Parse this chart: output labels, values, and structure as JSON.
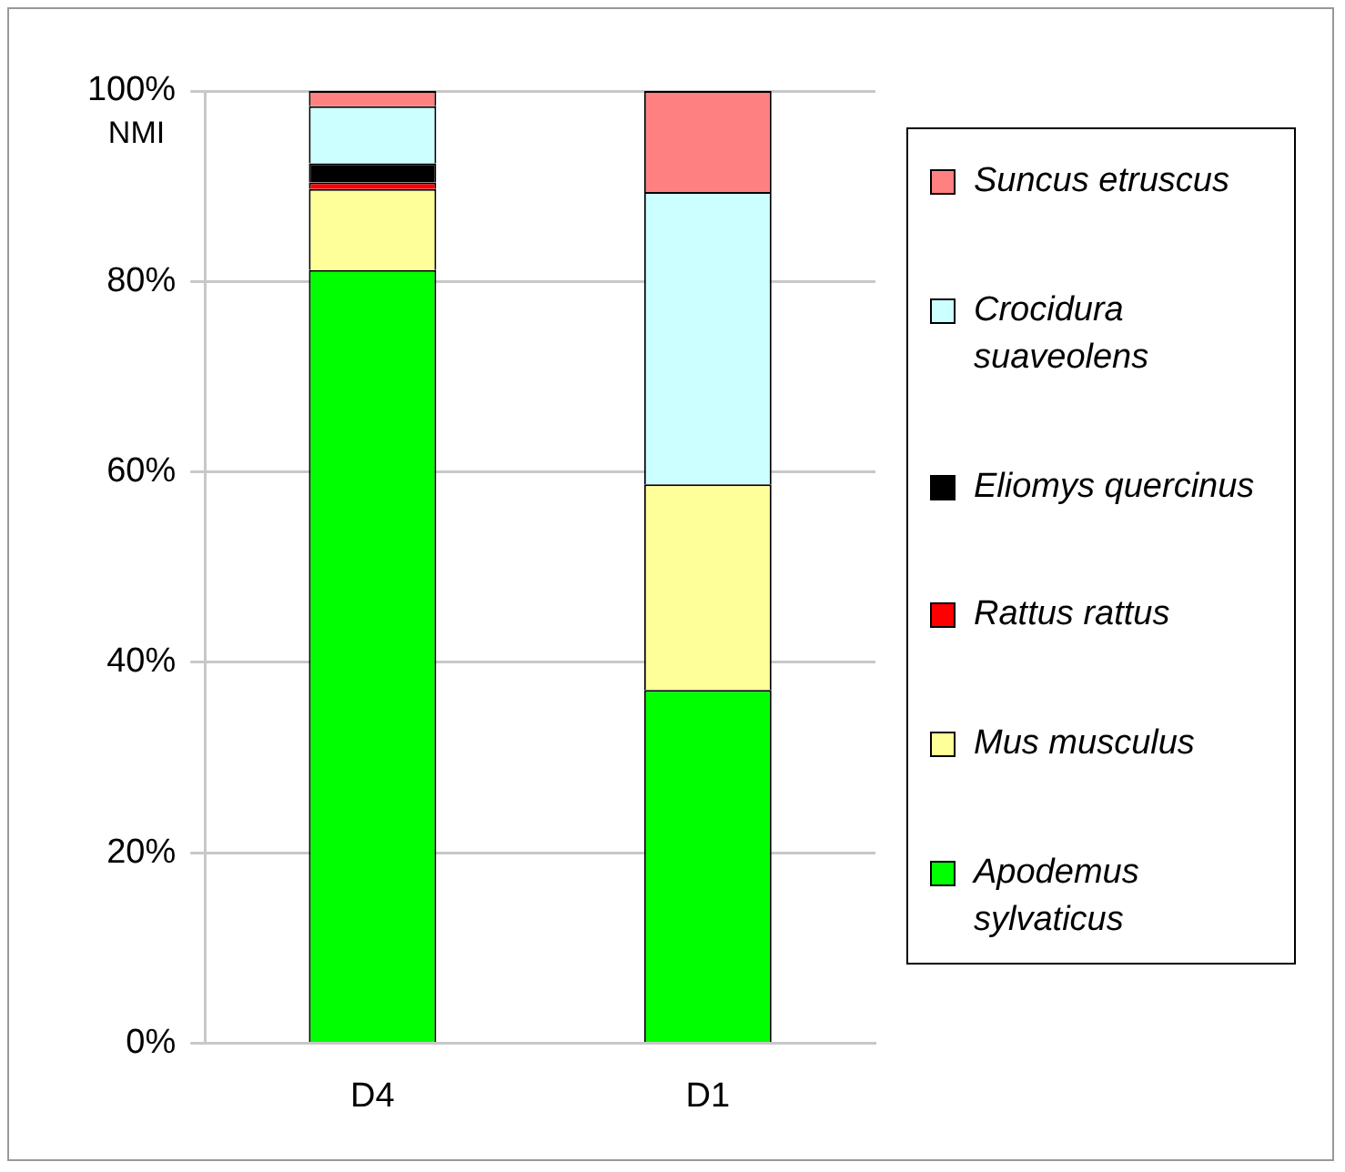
{
  "chart_data": {
    "type": "bar",
    "stacked": true,
    "ylabel": "NMI",
    "categories": [
      "D4",
      "D1"
    ],
    "series": [
      {
        "name": "Apodemus sylvaticus",
        "color": "#00ff00",
        "values": [
          81.2,
          37.1
        ]
      },
      {
        "name": "Mus musculus",
        "color": "#ffff99",
        "values": [
          8.5,
          21.6
        ]
      },
      {
        "name": "Rattus rattus",
        "color": "#ff0000",
        "values": [
          0.7,
          0
        ]
      },
      {
        "name": "Eliomys quercinus",
        "color": "#000000",
        "values": [
          2.0,
          0
        ]
      },
      {
        "name": "Crocidura suaveolens",
        "color": "#ccffff",
        "values": [
          6.0,
          30.7
        ]
      },
      {
        "name": "Suncus etruscus",
        "color": "#ff8080",
        "values": [
          1.6,
          10.6
        ]
      }
    ],
    "ylim": [
      0,
      100
    ],
    "yticks": [
      {
        "value": 0,
        "label": "0%"
      },
      {
        "value": 20,
        "label": "20%"
      },
      {
        "value": 40,
        "label": "40%"
      },
      {
        "value": 60,
        "label": "60%"
      },
      {
        "value": 80,
        "label": "80%"
      },
      {
        "value": 100,
        "label": "100%"
      }
    ],
    "grid": "y",
    "legend": "right"
  }
}
